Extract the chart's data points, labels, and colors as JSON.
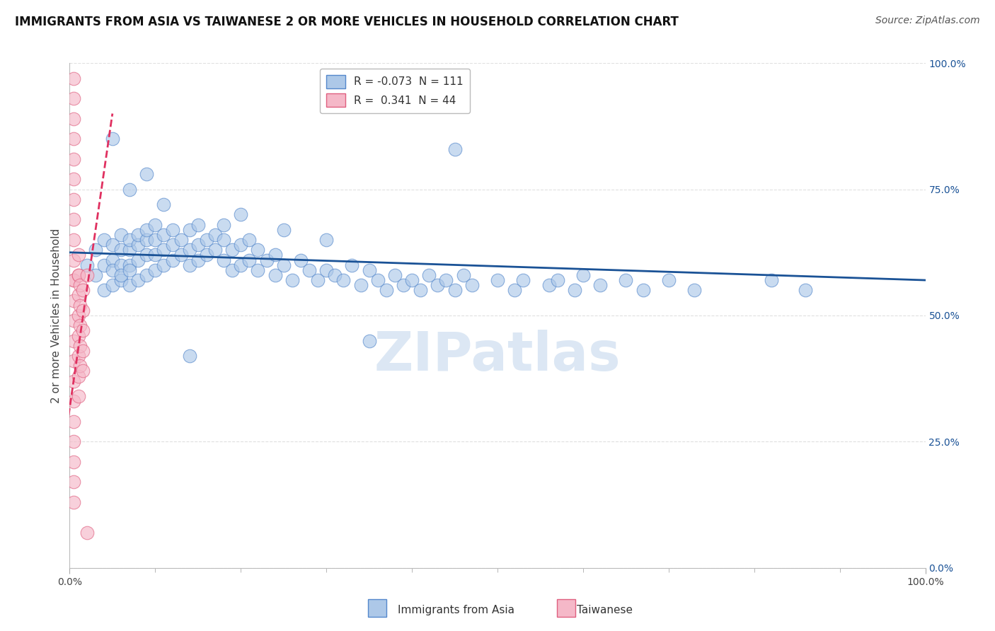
{
  "title": "IMMIGRANTS FROM ASIA VS TAIWANESE 2 OR MORE VEHICLES IN HOUSEHOLD CORRELATION CHART",
  "source": "Source: ZipAtlas.com",
  "ylabel": "2 or more Vehicles in Household",
  "xlim": [
    0.0,
    1.0
  ],
  "ylim": [
    0.0,
    1.0
  ],
  "xtick_positions": [
    0.0,
    1.0
  ],
  "xtick_labels": [
    "0.0%",
    "100.0%"
  ],
  "ytick_vals": [
    0.0,
    0.25,
    0.5,
    0.75,
    1.0
  ],
  "ytick_labels": [
    "0.0%",
    "25.0%",
    "50.0%",
    "75.0%",
    "100.0%"
  ],
  "legend_blue_R": "-0.073",
  "legend_blue_N": "111",
  "legend_pink_R": "0.341",
  "legend_pink_N": "44",
  "legend_label_blue": "Immigrants from Asia",
  "legend_label_pink": "Taiwanese",
  "blue_color": "#adc8e8",
  "blue_edge": "#5588cc",
  "pink_color": "#f5b8c8",
  "pink_edge": "#e06080",
  "trend_blue_color": "#1a5296",
  "trend_pink_color": "#e03060",
  "watermark": "ZIPatlas",
  "blue_scatter_x": [
    0.02,
    0.03,
    0.03,
    0.04,
    0.04,
    0.04,
    0.05,
    0.05,
    0.05,
    0.05,
    0.06,
    0.06,
    0.06,
    0.06,
    0.06,
    0.07,
    0.07,
    0.07,
    0.07,
    0.07,
    0.08,
    0.08,
    0.08,
    0.08,
    0.09,
    0.09,
    0.09,
    0.09,
    0.1,
    0.1,
    0.1,
    0.1,
    0.11,
    0.11,
    0.11,
    0.12,
    0.12,
    0.12,
    0.13,
    0.13,
    0.14,
    0.14,
    0.14,
    0.15,
    0.15,
    0.15,
    0.16,
    0.16,
    0.17,
    0.17,
    0.18,
    0.18,
    0.19,
    0.19,
    0.2,
    0.2,
    0.21,
    0.21,
    0.22,
    0.22,
    0.23,
    0.24,
    0.24,
    0.25,
    0.26,
    0.27,
    0.28,
    0.29,
    0.3,
    0.31,
    0.32,
    0.33,
    0.34,
    0.35,
    0.36,
    0.37,
    0.38,
    0.39,
    0.4,
    0.41,
    0.42,
    0.43,
    0.44,
    0.45,
    0.46,
    0.47,
    0.5,
    0.52,
    0.53,
    0.56,
    0.57,
    0.59,
    0.6,
    0.62,
    0.65,
    0.67,
    0.7,
    0.73,
    0.82,
    0.86,
    0.45,
    0.14,
    0.05,
    0.07,
    0.09,
    0.11,
    0.18,
    0.2,
    0.25,
    0.3,
    0.35
  ],
  "blue_scatter_y": [
    0.6,
    0.58,
    0.63,
    0.55,
    0.6,
    0.65,
    0.56,
    0.61,
    0.64,
    0.59,
    0.57,
    0.6,
    0.63,
    0.66,
    0.58,
    0.56,
    0.6,
    0.63,
    0.65,
    0.59,
    0.57,
    0.61,
    0.64,
    0.66,
    0.58,
    0.62,
    0.65,
    0.67,
    0.59,
    0.62,
    0.65,
    0.68,
    0.6,
    0.63,
    0.66,
    0.61,
    0.64,
    0.67,
    0.62,
    0.65,
    0.6,
    0.63,
    0.67,
    0.61,
    0.64,
    0.68,
    0.62,
    0.65,
    0.63,
    0.66,
    0.61,
    0.65,
    0.59,
    0.63,
    0.6,
    0.64,
    0.61,
    0.65,
    0.59,
    0.63,
    0.61,
    0.58,
    0.62,
    0.6,
    0.57,
    0.61,
    0.59,
    0.57,
    0.59,
    0.58,
    0.57,
    0.6,
    0.56,
    0.59,
    0.57,
    0.55,
    0.58,
    0.56,
    0.57,
    0.55,
    0.58,
    0.56,
    0.57,
    0.55,
    0.58,
    0.56,
    0.57,
    0.55,
    0.57,
    0.56,
    0.57,
    0.55,
    0.58,
    0.56,
    0.57,
    0.55,
    0.57,
    0.55,
    0.57,
    0.55,
    0.83,
    0.42,
    0.85,
    0.75,
    0.78,
    0.72,
    0.68,
    0.7,
    0.67,
    0.65,
    0.45
  ],
  "pink_scatter_x": [
    0.005,
    0.005,
    0.005,
    0.005,
    0.005,
    0.005,
    0.005,
    0.005,
    0.005,
    0.005,
    0.005,
    0.005,
    0.005,
    0.005,
    0.005,
    0.005,
    0.005,
    0.005,
    0.005,
    0.005,
    0.005,
    0.005,
    0.005,
    0.01,
    0.01,
    0.01,
    0.01,
    0.01,
    0.01,
    0.01,
    0.01,
    0.01,
    0.012,
    0.012,
    0.012,
    0.012,
    0.012,
    0.015,
    0.015,
    0.015,
    0.015,
    0.015,
    0.02,
    0.02
  ],
  "pink_scatter_y": [
    0.97,
    0.93,
    0.89,
    0.85,
    0.81,
    0.77,
    0.73,
    0.69,
    0.65,
    0.61,
    0.57,
    0.53,
    0.49,
    0.45,
    0.41,
    0.37,
    0.33,
    0.29,
    0.25,
    0.21,
    0.17,
    0.13,
    0.57,
    0.62,
    0.58,
    0.54,
    0.5,
    0.46,
    0.42,
    0.38,
    0.34,
    0.58,
    0.56,
    0.52,
    0.48,
    0.44,
    0.4,
    0.55,
    0.51,
    0.47,
    0.43,
    0.39,
    0.58,
    0.07
  ],
  "blue_trend_x": [
    0.0,
    1.0
  ],
  "blue_trend_y": [
    0.625,
    0.57
  ],
  "pink_trend_x": [
    -0.01,
    0.05
  ],
  "pink_trend_y": [
    0.2,
    0.9
  ],
  "grid_color": "#e0e0e0",
  "background_color": "#ffffff",
  "title_fontsize": 12,
  "source_fontsize": 10,
  "legend_fontsize": 11,
  "axis_label_fontsize": 11,
  "watermark_color": "#c5d8ed",
  "watermark_fontsize": 55
}
